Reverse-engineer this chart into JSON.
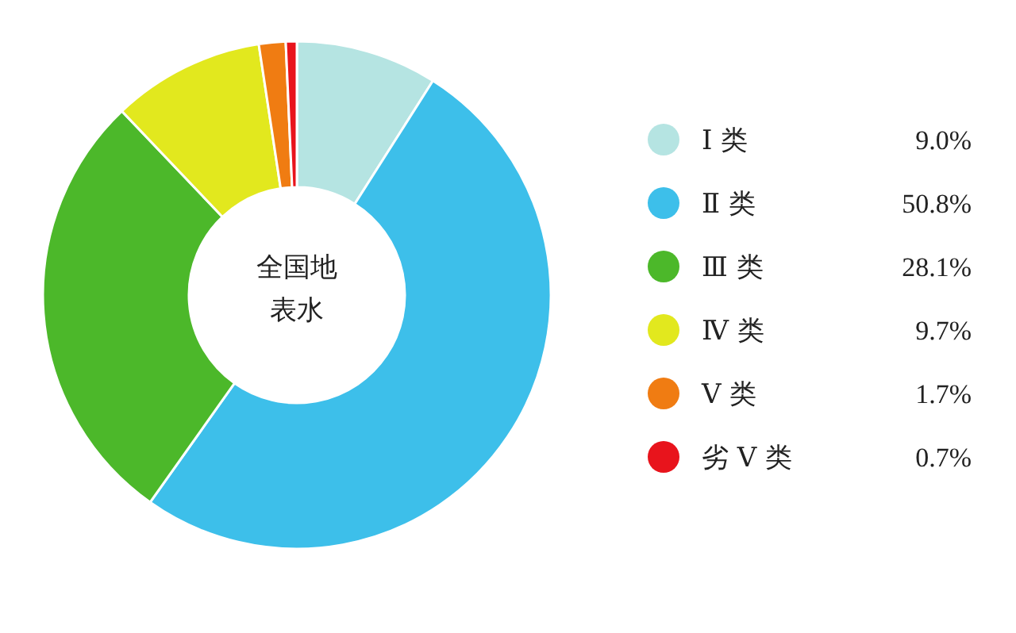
{
  "chart_data": {
    "type": "donut",
    "title": "全国地表水",
    "categories": [
      "Ⅰ 类",
      "Ⅱ 类",
      "Ⅲ 类",
      "Ⅳ 类",
      "Ⅴ 类",
      "劣 Ⅴ 类"
    ],
    "values": [
      9.0,
      50.8,
      28.1,
      9.7,
      1.7,
      0.7
    ],
    "value_labels": [
      "9.0%",
      "50.8%",
      "28.1%",
      "9.7%",
      "1.7%",
      "0.7%"
    ],
    "colors": [
      "#b5e4e2",
      "#3dbfea",
      "#4cb82a",
      "#e2e81e",
      "#f07c12",
      "#e8141c"
    ],
    "legend": "right"
  }
}
